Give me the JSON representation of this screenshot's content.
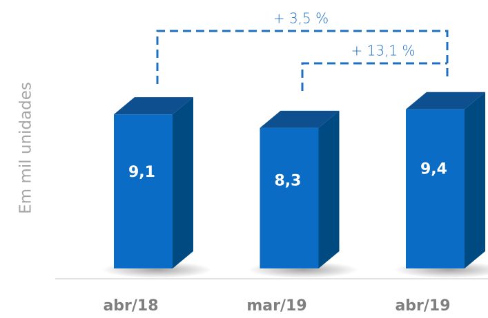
{
  "chart_data": {
    "type": "bar3d",
    "y_axis_label": "Em mil unidades",
    "categories": [
      "abr/18",
      "mar/19",
      "abr/19"
    ],
    "values": [
      9.1,
      8.3,
      9.4
    ],
    "value_labels": [
      "9,1",
      "8,3",
      "9,4"
    ],
    "color": "#0a6cc4",
    "ylim": [
      0,
      15
    ],
    "annotations": [
      "+ 3,5 %",
      "+ 13,1 %"
    ]
  }
}
